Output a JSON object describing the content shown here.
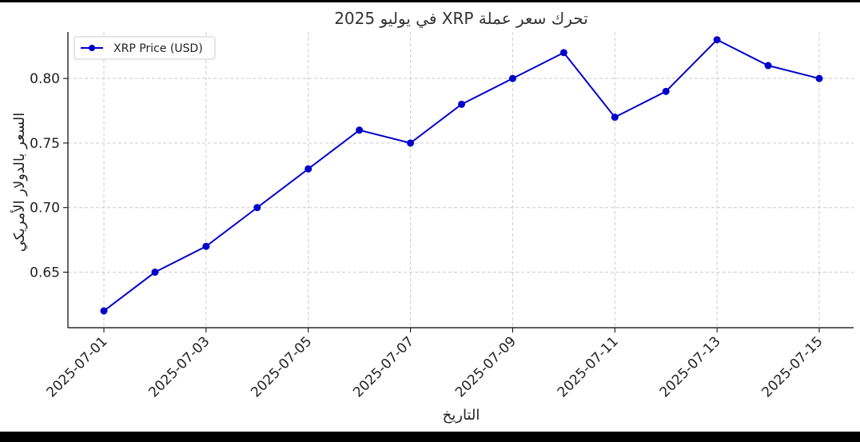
{
  "chart_data": {
    "type": "line",
    "title": "تحرك سعر عملة XRP في يوليو 2025",
    "xlabel": "التاريخ",
    "ylabel": "السعر بالدولار الأمريكي",
    "x": [
      "2025-07-01",
      "2025-07-02",
      "2025-07-03",
      "2025-07-04",
      "2025-07-05",
      "2025-07-06",
      "2025-07-07",
      "2025-07-08",
      "2025-07-09",
      "2025-07-10",
      "2025-07-11",
      "2025-07-12",
      "2025-07-13",
      "2025-07-14",
      "2025-07-15"
    ],
    "series": [
      {
        "name": "XRP Price (USD)",
        "color": "#0000cc",
        "values": [
          0.62,
          0.65,
          0.67,
          0.7,
          0.73,
          0.76,
          0.75,
          0.78,
          0.8,
          0.82,
          0.77,
          0.79,
          0.83,
          0.81,
          0.8
        ]
      }
    ],
    "x_tick_labels": [
      "2025-07-01",
      "2025-07-03",
      "2025-07-05",
      "2025-07-07",
      "2025-07-09",
      "2025-07-11",
      "2025-07-13",
      "2025-07-15"
    ],
    "y_ticks": [
      0.65,
      0.7,
      0.75,
      0.8
    ],
    "ylim": [
      0.607,
      0.836
    ],
    "grid": true,
    "legend_position": "top-left"
  }
}
